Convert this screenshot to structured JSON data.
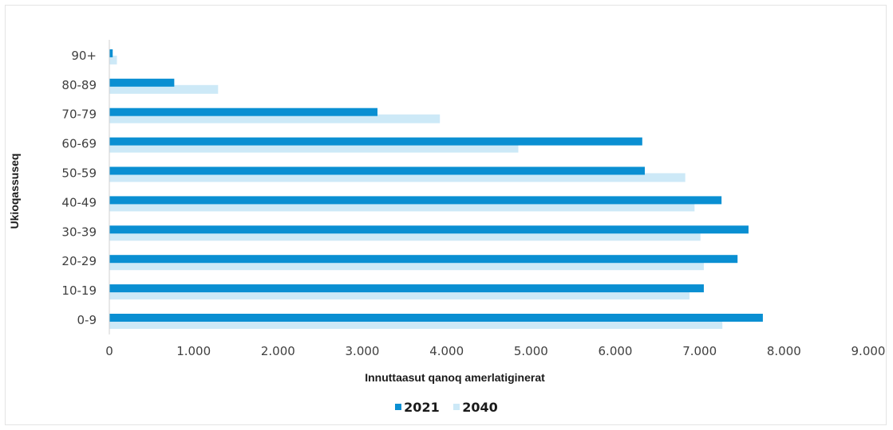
{
  "chart_data": {
    "type": "bar",
    "orientation": "horizontal",
    "categories": [
      "0-9",
      "10-19",
      "20-29",
      "30-39",
      "40-49",
      "50-59",
      "60-69",
      "70-79",
      "80-89",
      "90+"
    ],
    "series": [
      {
        "name": "2021",
        "color": "#0a8fd2",
        "values": [
          7750,
          7050,
          7450,
          7580,
          7260,
          6350,
          6320,
          3180,
          770,
          40
        ]
      },
      {
        "name": "2040",
        "color": "#cde9f7",
        "values": [
          7270,
          6880,
          7050,
          7010,
          6940,
          6830,
          4850,
          3920,
          1290,
          90
        ]
      }
    ],
    "xlabel": "Innuttaasut qanoq amerlatiginerat",
    "ylabel": "Ukioqassuseq",
    "xlim": [
      0,
      9000
    ],
    "xticks": [
      "0",
      "1.000",
      "2.000",
      "3.000",
      "4.000",
      "5.000",
      "6.000",
      "7.000",
      "8.000",
      "9.000"
    ],
    "grid": false,
    "legend_position": "bottom"
  }
}
